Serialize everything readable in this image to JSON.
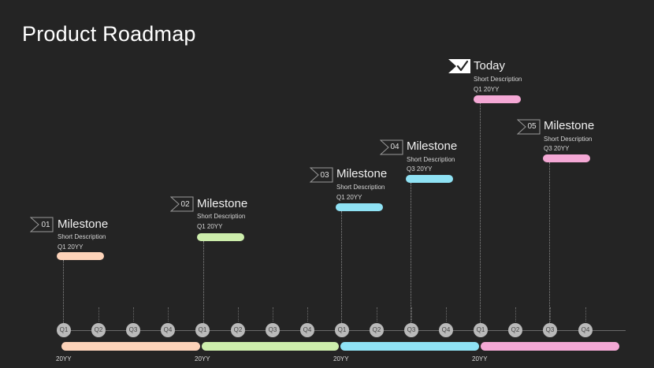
{
  "title": "Product Roadmap",
  "milestones": [
    {
      "number": "01",
      "title": "Milestone",
      "description": "Short Description",
      "date": "Q1 20YY",
      "color": "#fdd3b9"
    },
    {
      "number": "02",
      "title": "Milestone",
      "description": "Short Description",
      "date": "Q1 20YY",
      "color": "#cdeeac"
    },
    {
      "number": "03",
      "title": "Milestone",
      "description": "Short Description",
      "date": "Q1 20YY",
      "color": "#8fe2f4"
    },
    {
      "number": "04",
      "title": "Milestone",
      "description": "Short Description",
      "date": "Q3 20YY",
      "color": "#8fe2f4"
    },
    {
      "number": "05",
      "title": "Milestone",
      "description": "Short Description",
      "date": "Q3 20YY",
      "color": "#f4a8d5"
    }
  ],
  "today": {
    "title": "Today",
    "description": "Short Description",
    "date": "Q1 20YY",
    "color": "#f4a8d5",
    "icon": "checkmark-flag-icon"
  },
  "timeline": {
    "quarter_labels": [
      "Q1",
      "Q2",
      "Q3",
      "Q4",
      "Q1",
      "Q2",
      "Q3",
      "Q4",
      "Q1",
      "Q2",
      "Q3",
      "Q4",
      "Q1",
      "Q2",
      "Q3",
      "Q4"
    ],
    "years": [
      {
        "label": "20YY",
        "color": "#fdd3b9"
      },
      {
        "label": "20YY",
        "color": "#cdeeac"
      },
      {
        "label": "20YY",
        "color": "#8fe2f4"
      },
      {
        "label": "20YY",
        "color": "#f4a8d5"
      }
    ]
  }
}
